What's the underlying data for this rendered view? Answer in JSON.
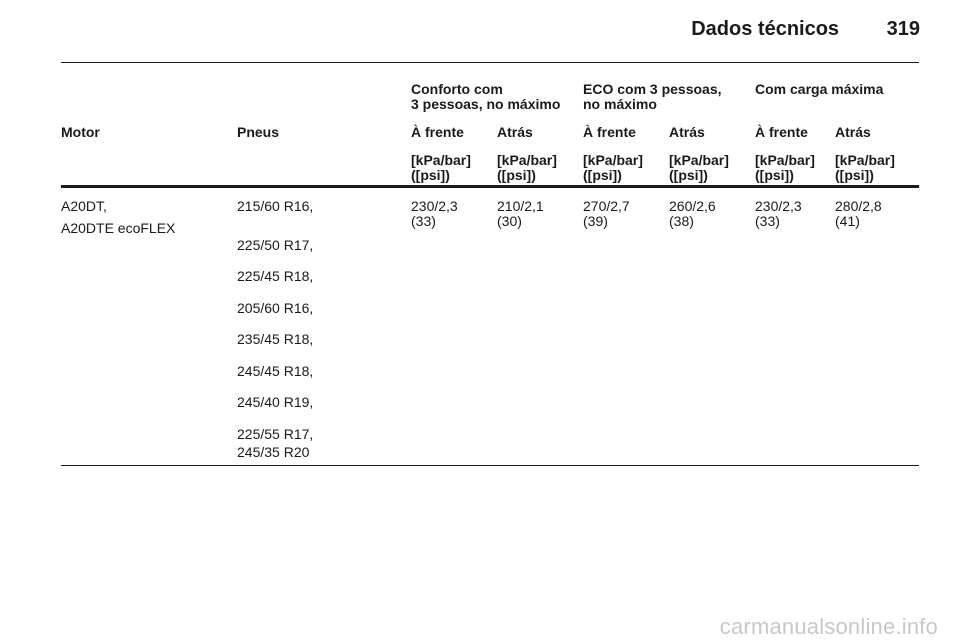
{
  "header": {
    "title": "Dados técnicos",
    "page_number": "319"
  },
  "groups": [
    {
      "line1": "Conforto com",
      "line2": "3 pessoas, no máximo"
    },
    {
      "line1": "ECO com 3 pessoas,",
      "line2": "no máximo"
    },
    {
      "line1": "Com carga máxima",
      "line2": ""
    }
  ],
  "columns": {
    "motor": "Motor",
    "pneus": "Pneus",
    "sub": [
      "À frente",
      "Atrás",
      "À frente",
      "Atrás",
      "À frente",
      "Atrás"
    ],
    "units_line1": "[kPa/bar]",
    "units_line2": "([psi])"
  },
  "row": {
    "engine_line1": "A20DT,",
    "engine_line2": "A20DTE ecoFLEX",
    "tires": [
      "215/60 R16,",
      "225/50 R17,",
      "225/45 R18,",
      "205/60 R16,",
      "235/45 R18,",
      "245/45 R18,",
      "245/40 R19,",
      "225/55 R17,",
      "245/35 R20"
    ],
    "pressures": [
      {
        "kpa_bar": "230/2,3",
        "psi": "(33)"
      },
      {
        "kpa_bar": "210/2,1",
        "psi": "(30)"
      },
      {
        "kpa_bar": "270/2,7",
        "psi": "(39)"
      },
      {
        "kpa_bar": "260/2,6",
        "psi": "(38)"
      },
      {
        "kpa_bar": "230/2,3",
        "psi": "(33)"
      },
      {
        "kpa_bar": "280/2,8",
        "psi": "(41)"
      }
    ]
  },
  "watermark": "carmanualsonline.info"
}
